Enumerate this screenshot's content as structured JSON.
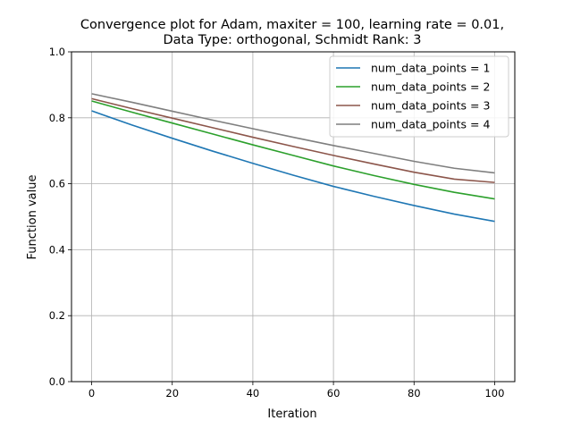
{
  "chart_data": {
    "type": "line",
    "title_lines": [
      "Convergence plot for Adam, maxiter = 100, learning rate = 0.01,",
      "Data Type: orthogonal, Schmidt Rank: 3"
    ],
    "xlabel": "Iteration",
    "ylabel": "Function value",
    "xlim": [
      -5,
      105
    ],
    "ylim": [
      0.0,
      1.0
    ],
    "xticks": [
      0,
      20,
      40,
      60,
      80,
      100
    ],
    "yticks": [
      0.0,
      0.2,
      0.4,
      0.6,
      0.8,
      1.0
    ],
    "xtick_labels": [
      "0",
      "20",
      "40",
      "60",
      "80",
      "100"
    ],
    "ytick_labels": [
      "0.0",
      "0.2",
      "0.4",
      "0.6",
      "0.8",
      "1.0"
    ],
    "grid": true,
    "legend_position": "top-right",
    "x": [
      0,
      10,
      20,
      30,
      40,
      50,
      60,
      70,
      80,
      90,
      100
    ],
    "series": [
      {
        "name": "num_data_points = 1",
        "color": "#1f77b4",
        "values": [
          0.821,
          0.778,
          0.738,
          0.699,
          0.662,
          0.626,
          0.592,
          0.562,
          0.534,
          0.508,
          0.486
        ]
      },
      {
        "name": "num_data_points = 2",
        "color": "#2ca02c",
        "values": [
          0.851,
          0.817,
          0.784,
          0.751,
          0.718,
          0.686,
          0.654,
          0.625,
          0.598,
          0.574,
          0.554
        ]
      },
      {
        "name": "num_data_points = 3",
        "color": "#8c564b",
        "values": [
          0.858,
          0.828,
          0.799,
          0.77,
          0.741,
          0.713,
          0.686,
          0.66,
          0.635,
          0.614,
          0.604
        ]
      },
      {
        "name": "num_data_points = 4",
        "color": "#7f7f7f",
        "values": [
          0.873,
          0.847,
          0.82,
          0.793,
          0.767,
          0.741,
          0.716,
          0.692,
          0.668,
          0.647,
          0.633
        ]
      }
    ]
  }
}
